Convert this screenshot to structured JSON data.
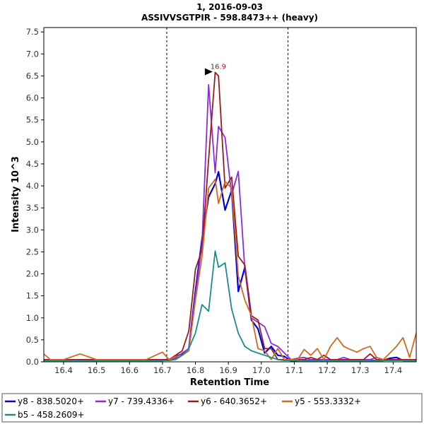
{
  "chart_data": {
    "type": "line",
    "title": "1, 2016-09-03",
    "subtitle": "ASSIVVSGTPIR - 598.8473++ (heavy)",
    "xlabel": "Retention Time",
    "ylabel": "Intensity 10^3",
    "xlim": [
      16.34,
      17.47
    ],
    "ylim": [
      0,
      7.6
    ],
    "x_ticks": [
      "16.4",
      "16.5",
      "16.6",
      "16.7",
      "16.8",
      "16.9",
      "17.0",
      "17.1",
      "17.2",
      "17.3",
      "17.4"
    ],
    "y_ticks": [
      "0.0",
      "0.5",
      "1.0",
      "1.5",
      "2.0",
      "2.5",
      "3.0",
      "3.5",
      "4.0",
      "4.5",
      "5.0",
      "5.5",
      "6.0",
      "6.5",
      "7.0",
      "7.5"
    ],
    "grid": false,
    "legend_position": "bottom",
    "integration_bounds": [
      16.713,
      17.081
    ],
    "annotation": {
      "text": "16.9",
      "x": 16.863,
      "y": 6.58
    },
    "series": [
      {
        "name": "y8 - 838.5020+",
        "color": "#0000e0",
        "width": 2.2,
        "x": [
          16.34,
          16.36,
          16.4,
          16.45,
          16.5,
          16.55,
          16.6,
          16.65,
          16.7,
          16.72,
          16.74,
          16.76,
          16.78,
          16.8,
          16.82,
          16.84,
          16.86,
          16.87,
          16.89,
          16.91,
          16.93,
          16.95,
          16.97,
          16.99,
          17.01,
          17.03,
          17.05,
          17.07,
          17.09,
          17.11,
          17.13,
          17.15,
          17.17,
          17.19,
          17.21,
          17.23,
          17.25,
          17.27,
          17.29,
          17.31,
          17.33,
          17.35,
          17.37,
          17.39,
          17.41,
          17.43,
          17.45,
          17.47
        ],
        "y": [
          0.03,
          0.03,
          0.03,
          0.03,
          0.03,
          0.03,
          0.03,
          0.03,
          0.03,
          0.05,
          0.12,
          0.18,
          0.3,
          1.6,
          2.8,
          3.75,
          4.05,
          4.32,
          3.45,
          3.9,
          1.6,
          2.15,
          0.95,
          0.75,
          0.2,
          0.35,
          0.15,
          0.12,
          0.02,
          0.03,
          0.03,
          0.03,
          0.03,
          0.03,
          0.03,
          0.03,
          0.03,
          0.03,
          0.03,
          0.03,
          0.03,
          0.03,
          0.03,
          0.08,
          0.1,
          0.03,
          0.03,
          0.03
        ]
      },
      {
        "name": "y7 - 739.4336+",
        "color": "#8a2be2",
        "width": 1.8,
        "x": [
          16.34,
          16.36,
          16.4,
          16.45,
          16.5,
          16.55,
          16.6,
          16.65,
          16.7,
          16.72,
          16.74,
          16.76,
          16.78,
          16.8,
          16.82,
          16.84,
          16.86,
          16.87,
          16.89,
          16.91,
          16.93,
          16.95,
          16.97,
          16.99,
          17.01,
          17.03,
          17.05,
          17.07,
          17.09,
          17.11,
          17.13,
          17.15,
          17.17,
          17.19,
          17.21,
          17.23,
          17.25,
          17.27,
          17.29,
          17.31,
          17.33,
          17.35,
          17.37,
          17.39,
          17.41,
          17.43,
          17.45,
          17.47
        ],
        "y": [
          0.05,
          0.05,
          0.05,
          0.05,
          0.05,
          0.05,
          0.05,
          0.05,
          0.05,
          0.05,
          0.08,
          0.2,
          0.3,
          1.5,
          2.7,
          6.3,
          4.3,
          5.35,
          5.1,
          3.8,
          4.33,
          2.1,
          1.0,
          0.9,
          0.8,
          0.42,
          0.35,
          0.2,
          0.05,
          0.08,
          0.1,
          0.05,
          0.05,
          0.05,
          0.05,
          0.05,
          0.1,
          0.05,
          0.05,
          0.05,
          0.05,
          0.1,
          0.05,
          0.05,
          0.05,
          0.05,
          0.05,
          0.05
        ]
      },
      {
        "name": "y6 - 640.3652+",
        "color": "#9a1c1c",
        "width": 1.8,
        "x": [
          16.34,
          16.36,
          16.4,
          16.45,
          16.5,
          16.55,
          16.6,
          16.65,
          16.7,
          16.72,
          16.74,
          16.76,
          16.78,
          16.8,
          16.82,
          16.84,
          16.86,
          16.87,
          16.89,
          16.91,
          16.93,
          16.95,
          16.97,
          16.99,
          17.01,
          17.03,
          17.05,
          17.07,
          17.09,
          17.11,
          17.13,
          17.15,
          17.17,
          17.19,
          17.21,
          17.23,
          17.25,
          17.27,
          17.29,
          17.31,
          17.33,
          17.35,
          17.37,
          17.39,
          17.41,
          17.43,
          17.45,
          17.47
        ],
        "y": [
          0.05,
          0.05,
          0.05,
          0.05,
          0.05,
          0.05,
          0.05,
          0.05,
          0.05,
          0.05,
          0.15,
          0.25,
          0.7,
          2.1,
          2.55,
          4.6,
          6.58,
          6.5,
          3.95,
          4.2,
          2.4,
          2.2,
          1.05,
          0.95,
          0.3,
          0.3,
          0.05,
          0.05,
          0.05,
          0.05,
          0.05,
          0.1,
          0.05,
          0.15,
          0.05,
          0.05,
          0.05,
          0.05,
          0.05,
          0.05,
          0.18,
          0.05,
          0.05,
          0.05,
          0.05,
          0.05,
          0.05,
          0.05
        ]
      },
      {
        "name": "y5 - 553.3332+",
        "color": "#d2691e",
        "width": 1.8,
        "x": [
          16.34,
          16.36,
          16.4,
          16.45,
          16.5,
          16.55,
          16.6,
          16.65,
          16.7,
          16.72,
          16.74,
          16.76,
          16.78,
          16.8,
          16.82,
          16.84,
          16.86,
          16.87,
          16.89,
          16.91,
          16.93,
          16.95,
          16.97,
          16.99,
          17.01,
          17.03,
          17.05,
          17.07,
          17.09,
          17.11,
          17.13,
          17.15,
          17.17,
          17.19,
          17.21,
          17.23,
          17.25,
          17.27,
          17.29,
          17.31,
          17.33,
          17.35,
          17.37,
          17.39,
          17.41,
          17.43,
          17.45,
          17.47
        ],
        "y": [
          0.18,
          0.05,
          0.05,
          0.18,
          0.05,
          0.05,
          0.05,
          0.05,
          0.22,
          0.05,
          0.12,
          0.15,
          0.25,
          1.4,
          2.4,
          3.95,
          4.15,
          3.6,
          4.1,
          3.95,
          1.95,
          1.4,
          1.05,
          0.3,
          0.25,
          0.05,
          0.3,
          0.05,
          0.05,
          0.05,
          0.28,
          0.15,
          0.3,
          0.05,
          0.35,
          0.55,
          0.35,
          0.28,
          0.22,
          0.3,
          0.35,
          0.1,
          0.05,
          0.2,
          0.35,
          0.55,
          0.1,
          0.65
        ]
      },
      {
        "name": "b5 - 458.2609+",
        "color": "#1a8c8c",
        "width": 1.8,
        "x": [
          16.34,
          16.36,
          16.4,
          16.45,
          16.5,
          16.55,
          16.6,
          16.65,
          16.7,
          16.72,
          16.74,
          16.76,
          16.78,
          16.8,
          16.82,
          16.84,
          16.86,
          16.87,
          16.89,
          16.91,
          16.93,
          16.95,
          16.97,
          16.99,
          17.01,
          17.03,
          17.05,
          17.07,
          17.09,
          17.11,
          17.13,
          17.15,
          17.17,
          17.19,
          17.21,
          17.23,
          17.25,
          17.27,
          17.29,
          17.31,
          17.33,
          17.35,
          17.37,
          17.39,
          17.41,
          17.43,
          17.45,
          17.47
        ],
        "y": [
          0.03,
          0.03,
          0.03,
          0.03,
          0.03,
          0.03,
          0.03,
          0.03,
          0.03,
          0.03,
          0.05,
          0.15,
          0.3,
          0.65,
          1.3,
          1.15,
          2.52,
          2.15,
          2.25,
          1.2,
          0.65,
          0.35,
          0.25,
          0.2,
          0.15,
          0.1,
          0.05,
          0.03,
          0.03,
          0.03,
          0.03,
          0.03,
          0.03,
          0.03,
          0.03,
          0.03,
          0.03,
          0.03,
          0.03,
          0.03,
          0.03,
          0.03,
          0.03,
          0.03,
          0.03,
          0.03,
          0.03,
          0.03
        ]
      }
    ]
  }
}
